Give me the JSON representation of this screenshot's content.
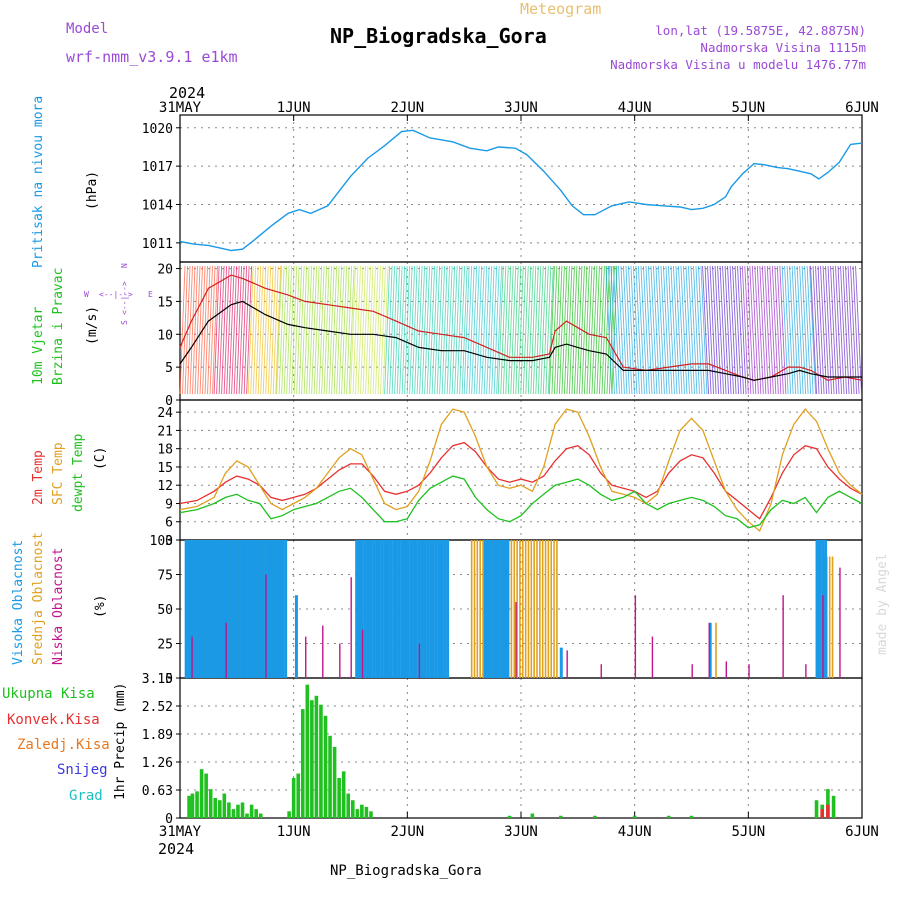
{
  "header": {
    "meteogram_label": "Meteogram",
    "model_label": "Model",
    "model_name": "wrf-nmm_v3.9.1 e1km",
    "station_title": "NP_Biogradska_Gora",
    "lonlat": "lon,lat (19.5875E, 42.8875N)",
    "elevation": "Nadmorska Visina 1115m",
    "model_elevation": "Nadmorska Visina u modelu 1476.77m",
    "footer_station": "NP_Biogradska_Gora",
    "watermark": "made by Angel"
  },
  "time_axis": {
    "year": "2024",
    "ticks": [
      "31MAY",
      "1JUN",
      "2JUN",
      "3JUN",
      "4JUN",
      "5JUN",
      "6JUN"
    ]
  },
  "colors": {
    "pressure": "#1a9ae6",
    "wind_speed": "#000000",
    "wind_gust": "#d02020",
    "temp2m": "#e83030",
    "sfc_temp": "#e0a020",
    "dewpoint": "#20c020",
    "high_cloud": "#1a9ae6",
    "mid_cloud": "#e0a020",
    "low_cloud": "#c0148c",
    "total_precip": "#20c020",
    "conv_precip": "#e83030",
    "frozen_precip": "#e87820",
    "snow": "#3a3ae0",
    "hail": "#20c0c0"
  },
  "chart_data": [
    {
      "type": "line",
      "panel": "pressure",
      "ylabel": "Pritisak na nivou mora",
      "unit": "(hPa)",
      "yticks": [
        "1011",
        "1014",
        "1017",
        "1020"
      ],
      "ylim": [
        1009.5,
        1021
      ],
      "x_days": [
        0,
        0.12,
        0.25,
        0.35,
        0.45,
        0.55,
        0.65,
        0.8,
        0.95,
        1.05,
        1.15,
        1.3,
        1.5,
        1.65,
        1.8,
        1.95,
        2.05,
        2.2,
        2.4,
        2.55,
        2.7,
        2.8,
        2.95,
        3.05,
        3.2,
        3.35,
        3.45,
        3.55,
        3.65,
        3.8,
        3.95,
        4.1,
        4.25,
        4.4,
        4.5,
        4.6,
        4.7,
        4.8,
        4.85,
        4.95,
        5.05,
        5.15,
        5.25,
        5.35,
        5.45,
        5.55,
        5.62,
        5.7,
        5.8,
        5.9,
        6
      ],
      "series": [
        {
          "values": [
            1011.1,
            1010.9,
            1010.8,
            1010.6,
            1010.4,
            1010.5,
            1011.2,
            1012.3,
            1013.3,
            1013.6,
            1013.3,
            1013.9,
            1016.2,
            1017.6,
            1018.6,
            1019.7,
            1019.8,
            1019.2,
            1018.9,
            1018.4,
            1018.2,
            1018.5,
            1018.4,
            1017.9,
            1016.6,
            1015.1,
            1013.9,
            1013.2,
            1013.2,
            1013.9,
            1014.2,
            1014.0,
            1013.9,
            1013.8,
            1013.6,
            1013.7,
            1014.0,
            1014.6,
            1015.4,
            1016.4,
            1017.2,
            1017.1,
            1016.9,
            1016.8,
            1016.6,
            1016.4,
            1016.0,
            1016.5,
            1017.3,
            1018.7,
            1018.8
          ]
        }
      ]
    },
    {
      "type": "line",
      "panel": "wind",
      "ylabel": [
        "10m Vjetar",
        "Brzina i Pravac"
      ],
      "unit": "(m/s)",
      "yticks": [
        "0",
        "5",
        "10",
        "15",
        "20"
      ],
      "ylim": [
        0,
        21
      ],
      "legend_compass": [
        "W",
        "<--|-->",
        "E",
        "S",
        "<--|-->",
        "N"
      ],
      "x_days": [
        0,
        0.1,
        0.25,
        0.45,
        0.55,
        0.75,
        0.95,
        1.1,
        1.3,
        1.5,
        1.7,
        1.9,
        2.1,
        2.3,
        2.5,
        2.7,
        2.9,
        3.1,
        3.25,
        3.3,
        3.4,
        3.5,
        3.6,
        3.75,
        3.9,
        4.1,
        4.3,
        4.5,
        4.65,
        4.8,
        4.95,
        5.05,
        5.2,
        5.35,
        5.45,
        5.55,
        5.7,
        5.85,
        6
      ],
      "series": [
        {
          "name": "speed",
          "values": [
            5.5,
            8,
            12,
            14.5,
            15,
            13,
            11.5,
            11,
            10.5,
            10,
            10,
            9.5,
            8,
            7.5,
            7.5,
            6.5,
            6,
            6,
            6.5,
            8,
            8.5,
            8,
            7.5,
            7,
            4.5,
            4.5,
            4.5,
            4.5,
            4.5,
            4,
            3.5,
            3,
            3.5,
            4,
            4.5,
            4,
            3.5,
            3.5,
            3.5
          ]
        },
        {
          "name": "gust",
          "values": [
            8,
            12,
            17,
            19,
            18.5,
            17,
            16,
            15,
            14.5,
            14,
            13.5,
            12,
            10.5,
            10,
            9.5,
            8,
            6.5,
            6.5,
            7,
            10.5,
            12,
            11,
            10,
            9.5,
            5,
            4.5,
            5,
            5.5,
            5.5,
            4.5,
            3.5,
            3,
            3.5,
            5,
            5,
            4.5,
            3,
            3.5,
            3
          ]
        }
      ]
    },
    {
      "type": "line",
      "panel": "temperature",
      "ylabel": [
        "2m Temp",
        "SFC Temp",
        "dewpt Temp"
      ],
      "unit": "(C)",
      "yticks": [
        "3",
        "6",
        "9",
        "12",
        "15",
        "18",
        "21",
        "24"
      ],
      "ylim": [
        3,
        26
      ],
      "x_days": [
        0,
        0.15,
        0.3,
        0.4,
        0.5,
        0.6,
        0.7,
        0.8,
        0.9,
        1.0,
        1.1,
        1.2,
        1.3,
        1.4,
        1.5,
        1.6,
        1.7,
        1.8,
        1.9,
        2.0,
        2.1,
        2.2,
        2.3,
        2.4,
        2.5,
        2.6,
        2.7,
        2.8,
        2.9,
        3.0,
        3.1,
        3.2,
        3.3,
        3.4,
        3.5,
        3.6,
        3.7,
        3.8,
        3.9,
        4.0,
        4.1,
        4.2,
        4.3,
        4.4,
        4.5,
        4.6,
        4.7,
        4.8,
        4.9,
        5.0,
        5.1,
        5.2,
        5.3,
        5.4,
        5.5,
        5.6,
        5.7,
        5.8,
        5.9,
        6.0
      ],
      "series": [
        {
          "name": "2m Temp",
          "values": [
            9,
            9.5,
            11,
            12.5,
            13.5,
            13,
            12,
            10,
            9.5,
            10,
            10.5,
            11.5,
            13,
            14.5,
            15.5,
            15.5,
            13.5,
            11,
            10.5,
            11,
            12,
            14,
            16.5,
            18.5,
            19,
            17.5,
            15,
            13,
            12.5,
            13,
            12.5,
            13.5,
            16,
            18,
            18.5,
            17,
            14,
            12,
            11.5,
            11,
            10,
            11,
            14,
            16,
            17,
            16.5,
            14,
            11,
            9.5,
            8,
            6.5,
            10,
            14,
            17,
            18.5,
            18,
            15,
            13,
            11.5,
            10.5
          ]
        },
        {
          "name": "SFC Temp",
          "values": [
            8,
            8.5,
            10,
            14,
            16,
            15,
            12,
            9,
            8,
            9,
            10,
            11.5,
            14,
            16.5,
            18,
            17,
            13,
            9,
            8,
            8.5,
            11,
            16,
            22,
            24.5,
            24,
            20,
            15,
            12,
            11.5,
            12,
            11,
            15,
            22,
            24.5,
            24,
            20,
            15,
            11,
            10.5,
            10,
            9,
            10.5,
            16,
            21,
            23,
            21,
            16,
            11,
            8,
            6,
            4.5,
            9,
            17,
            22,
            24.5,
            22.5,
            18,
            14,
            12,
            10.5
          ]
        },
        {
          "name": "dewpt Temp",
          "values": [
            7.5,
            8,
            9,
            10,
            10.5,
            9.5,
            9,
            6.5,
            7,
            8,
            8.5,
            9,
            10,
            11,
            11.5,
            10,
            8,
            6,
            6,
            6.5,
            9.5,
            11.5,
            12.5,
            13.5,
            13,
            10,
            8,
            6.5,
            6,
            7,
            9,
            10.5,
            12,
            12.5,
            13,
            12,
            10.5,
            9.5,
            10,
            11,
            9,
            8,
            9,
            9.5,
            10,
            9.5,
            8.5,
            7,
            6.5,
            5,
            5.5,
            8,
            9.5,
            9,
            10,
            7.5,
            10,
            11,
            10,
            9
          ]
        }
      ]
    },
    {
      "type": "bar",
      "panel": "clouds",
      "ylabel": [
        "Visoka Oblacnost",
        "Srednja Oblacnost",
        "Niska Oblacnost"
      ],
      "unit": "(%)",
      "yticks": [
        "0",
        "25",
        "50",
        "75",
        "100"
      ],
      "ylim": [
        0,
        100
      ],
      "series": [
        {
          "name": "Visoka Oblacnost",
          "segments": [
            [
              0.05,
              0.95,
              100
            ],
            [
              1.02,
              1.04,
              60
            ],
            [
              1.55,
              2.35,
              100
            ],
            [
              2.68,
              2.9,
              100
            ],
            [
              3.35,
              3.36,
              22
            ],
            [
              4.66,
              4.67,
              40
            ],
            [
              5.6,
              5.7,
              100
            ]
          ]
        },
        {
          "name": "Srednja Oblacnost",
          "segments": [
            [
              0.08,
              0.9,
              100
            ],
            [
              2.55,
              3.3,
              100
            ],
            [
              4.7,
              4.72,
              40
            ],
            [
              5.65,
              5.75,
              88
            ]
          ]
        },
        {
          "name": "Niska Oblacnost",
          "spikes": [
            [
              0.1,
              30
            ],
            [
              0.4,
              40
            ],
            [
              0.75,
              75
            ],
            [
              1.1,
              30
            ],
            [
              1.25,
              38
            ],
            [
              1.4,
              25
            ],
            [
              1.5,
              73
            ],
            [
              1.6,
              35
            ],
            [
              2.1,
              25
            ],
            [
              2.95,
              55
            ],
            [
              3.4,
              20
            ],
            [
              3.7,
              10
            ],
            [
              4.0,
              60
            ],
            [
              4.15,
              30
            ],
            [
              4.5,
              10
            ],
            [
              4.65,
              40
            ],
            [
              4.8,
              12
            ],
            [
              5.0,
              10
            ],
            [
              5.3,
              60
            ],
            [
              5.5,
              10
            ],
            [
              5.65,
              60
            ],
            [
              5.8,
              80
            ]
          ]
        }
      ]
    },
    {
      "type": "bar",
      "panel": "precipitation",
      "ylabel": "1hr Precip (mm)",
      "legend": [
        "Ukupna Kisa",
        "Konvek.Kisa",
        "Zaledj.Kisa",
        "Snijeg",
        "Grad"
      ],
      "yticks": [
        "0",
        "0.63",
        "1.26",
        "1.89",
        "2.52",
        "3.15"
      ],
      "ylim": [
        0,
        3.15
      ],
      "series": [
        {
          "name": "Ukupna Kisa",
          "x_days": [
            0.08,
            0.11,
            0.15,
            0.19,
            0.23,
            0.27,
            0.31,
            0.35,
            0.39,
            0.43,
            0.47,
            0.51,
            0.55,
            0.59,
            0.63,
            0.67,
            0.71,
            0.75,
            0.96,
            1.0,
            1.04,
            1.08,
            1.12,
            1.16,
            1.2,
            1.24,
            1.28,
            1.32,
            1.36,
            1.4,
            1.44,
            1.48,
            1.52,
            1.56,
            1.6,
            1.64,
            1.68,
            2.9,
            3.1,
            3.35,
            3.65,
            4.0,
            4.3,
            4.5,
            5.6,
            5.65,
            5.7,
            5.75
          ],
          "values": [
            0.5,
            0.55,
            0.6,
            1.1,
            1.0,
            0.65,
            0.45,
            0.4,
            0.55,
            0.35,
            0.2,
            0.3,
            0.35,
            0.1,
            0.3,
            0.2,
            0.1,
            0.0,
            0.15,
            0.9,
            1.0,
            2.45,
            3.0,
            2.65,
            2.75,
            2.55,
            2.3,
            1.85,
            1.6,
            0.9,
            1.05,
            0.55,
            0.4,
            0.2,
            0.3,
            0.25,
            0.15,
            0.05,
            0.1,
            0.05,
            0.05,
            0.05,
            0.05,
            0.05,
            0.4,
            0.3,
            0.65,
            0.5
          ]
        },
        {
          "name": "Konvek.Kisa",
          "x_days": [
            5.65,
            5.7
          ],
          "values": [
            0.2,
            0.3
          ]
        }
      ]
    }
  ]
}
